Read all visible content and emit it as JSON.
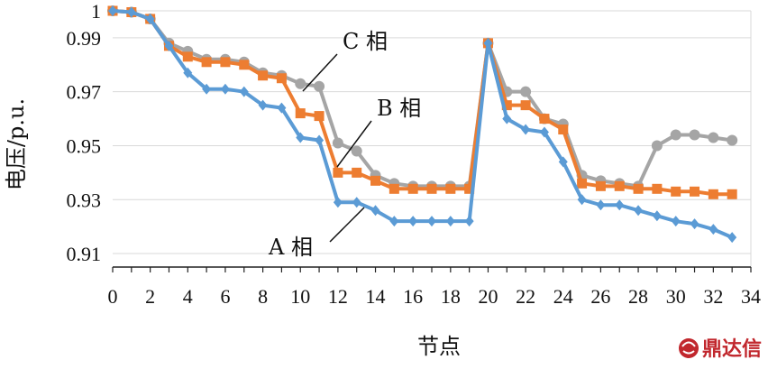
{
  "chart_data": {
    "type": "line",
    "xlabel": "节点",
    "ylabel": "电压/p.u.",
    "xlim": [
      0,
      34
    ],
    "ylim": [
      0.905,
      1.0
    ],
    "x_ticks": [
      "0",
      "2",
      "4",
      "6",
      "8",
      "10",
      "12",
      "14",
      "16",
      "18",
      "20",
      "22",
      "24",
      "26",
      "28",
      "30",
      "32",
      "34"
    ],
    "y_ticks": [
      "1",
      "0.99",
      "0.97",
      "0.95",
      "0.93",
      "0.91"
    ],
    "y_tick_values": [
      1.0,
      0.99,
      0.97,
      0.95,
      0.93,
      0.91
    ],
    "grid": "horizontal",
    "x": [
      0,
      1,
      2,
      3,
      4,
      5,
      6,
      7,
      8,
      9,
      10,
      11,
      12,
      13,
      14,
      15,
      16,
      17,
      18,
      19,
      20,
      21,
      22,
      23,
      24,
      25,
      26,
      27,
      28,
      29,
      30,
      31,
      32,
      33
    ],
    "series": [
      {
        "name": "A 相",
        "color": "#5b9bd5",
        "marker": "diamond",
        "values": [
          1.0,
          0.9995,
          0.997,
          0.987,
          0.977,
          0.971,
          0.971,
          0.97,
          0.965,
          0.964,
          0.953,
          0.952,
          0.929,
          0.929,
          0.926,
          0.922,
          0.922,
          0.922,
          0.922,
          0.922,
          0.988,
          0.96,
          0.956,
          0.955,
          0.944,
          0.93,
          0.928,
          0.928,
          0.926,
          0.924,
          0.922,
          0.921,
          0.919,
          0.916
        ]
      },
      {
        "name": "B 相",
        "color": "#ed7d31",
        "marker": "square",
        "values": [
          1.0,
          0.9995,
          0.997,
          0.987,
          0.983,
          0.981,
          0.981,
          0.98,
          0.976,
          0.975,
          0.962,
          0.961,
          0.94,
          0.94,
          0.937,
          0.934,
          0.934,
          0.934,
          0.934,
          0.934,
          0.988,
          0.965,
          0.965,
          0.96,
          0.956,
          0.936,
          0.935,
          0.935,
          0.934,
          0.934,
          0.933,
          0.933,
          0.932,
          0.932
        ]
      },
      {
        "name": "C 相",
        "color": "#a5a5a5",
        "marker": "circle",
        "values": [
          1.0,
          0.9995,
          0.997,
          0.988,
          0.985,
          0.982,
          0.982,
          0.981,
          0.977,
          0.976,
          0.973,
          0.972,
          0.951,
          0.948,
          0.939,
          0.936,
          0.935,
          0.935,
          0.935,
          0.935,
          0.988,
          0.97,
          0.97,
          0.96,
          0.958,
          0.939,
          0.937,
          0.936,
          0.935,
          0.95,
          0.954,
          0.954,
          0.953,
          0.952
        ]
      }
    ],
    "annotations": [
      {
        "text": "C 相",
        "series": "C 相",
        "x": 10
      },
      {
        "text": "B 相",
        "series": "B 相",
        "x": 12
      },
      {
        "text": "A 相",
        "series": "A 相",
        "x": 14
      }
    ]
  },
  "watermark": {
    "text": "鼎达信",
    "icon": "dingdaxin-logo-icon",
    "color": "#c1272d"
  }
}
